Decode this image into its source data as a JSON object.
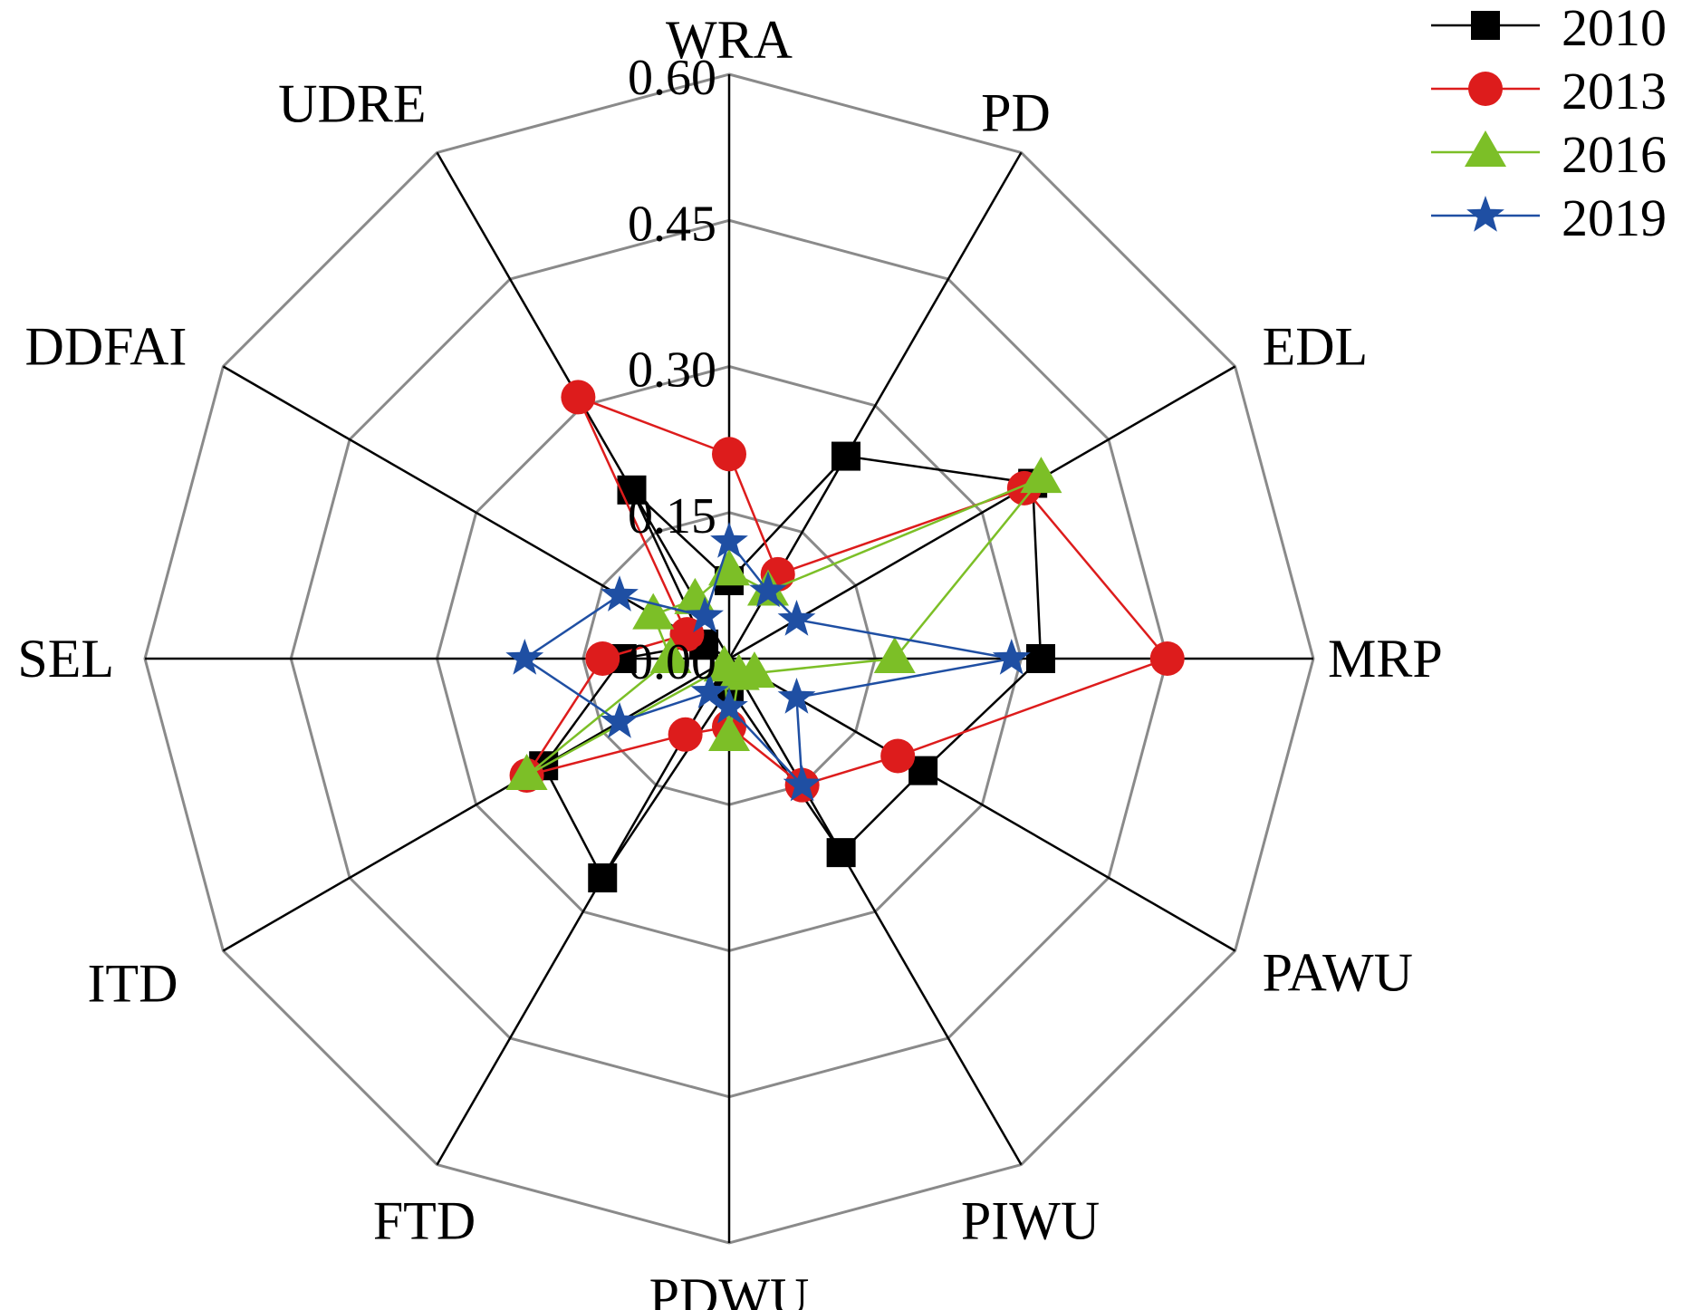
{
  "chart_data": {
    "type": "radar",
    "axes": [
      "WRA",
      "PD",
      "EDL",
      "MRP",
      "PAWU",
      "PIWU",
      "PDWU",
      "FTD",
      "ITD",
      "SEL",
      "DDFAI",
      "UDRE"
    ],
    "ticks": [
      "0.00",
      "0.15",
      "0.30",
      "0.45",
      "0.60"
    ],
    "tick_values": [
      0,
      0.15,
      0.3,
      0.45,
      0.6
    ],
    "rmax": 0.6,
    "grid": true,
    "legend_position": "top-right",
    "series": [
      {
        "name": "2010",
        "color": "#000000",
        "marker": "square",
        "values": [
          0.08,
          0.24,
          0.36,
          0.32,
          0.23,
          0.23,
          0.03,
          0.26,
          0.22,
          0.11,
          0.03,
          0.2
        ]
      },
      {
        "name": "2013",
        "color": "#dd1c1c",
        "marker": "circle",
        "values": [
          0.21,
          0.1,
          0.35,
          0.45,
          0.2,
          0.15,
          0.07,
          0.09,
          0.24,
          0.13,
          0.05,
          0.31
        ]
      },
      {
        "name": "2016",
        "color": "#7cbf27",
        "marker": "triangle",
        "values": [
          0.09,
          0.08,
          0.37,
          0.17,
          0.03,
          0.02,
          0.08,
          0.01,
          0.24,
          0.06,
          0.09,
          0.07
        ]
      },
      {
        "name": "2019",
        "color": "#1f4fa3",
        "marker": "star",
        "values": [
          0.12,
          0.08,
          0.08,
          0.29,
          0.08,
          0.15,
          0.05,
          0.04,
          0.13,
          0.21,
          0.13,
          0.05
        ]
      }
    ]
  }
}
